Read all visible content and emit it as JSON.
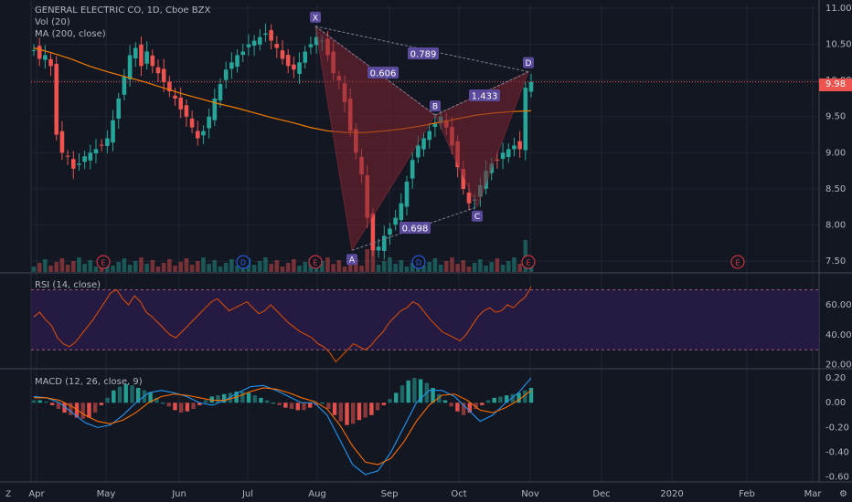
{
  "legend": {
    "symbol": "GENERAL ELECTRIC CO, 1D, Cboe BZX",
    "volume": "Vol (20)",
    "ma": "MA (200, close)",
    "rsi": "RSI (14, close)",
    "macd": "MACD (12, 26, close, 9)"
  },
  "last_price": "9.98",
  "colors": {
    "up": "#26a69a",
    "down": "#ef5350",
    "ma": "#f57c00",
    "rsi": "#e65100",
    "rsi_band": "#2a1b4a",
    "macd": "#2196f3",
    "signal": "#ff6d00",
    "pattern": "#7d2430",
    "label_bg": "#5b4a9c"
  },
  "chart_data": [
    {
      "type": "candlestick",
      "title": "GENERAL ELECTRIC CO, 1D, Cboe BZX",
      "x_ticks": [
        "Apr",
        "May",
        "Jun",
        "Jul",
        "Aug",
        "Sep",
        "Oct",
        "Nov",
        "Dec",
        "2020",
        "Feb",
        "Mar"
      ],
      "y_ticks": [
        "11.00",
        "10.50",
        "10.00",
        "9.50",
        "9.00",
        "8.50",
        "8.00",
        "7.50"
      ],
      "ylim": [
        7.35,
        11.05
      ],
      "close": [
        10.42,
        10.3,
        10.35,
        10.2,
        9.25,
        9.0,
        8.95,
        8.78,
        8.85,
        8.95,
        9.0,
        9.05,
        9.1,
        9.2,
        9.45,
        9.75,
        10.05,
        10.35,
        10.45,
        10.2,
        10.4,
        10.2,
        10.1,
        9.98,
        9.85,
        9.75,
        9.6,
        9.5,
        9.35,
        9.2,
        9.3,
        9.5,
        9.75,
        9.95,
        10.15,
        10.25,
        10.35,
        10.4,
        10.5,
        10.55,
        10.6,
        10.65,
        10.55,
        10.45,
        10.3,
        10.2,
        10.15,
        10.25,
        10.4,
        10.5,
        10.6,
        10.55,
        10.35,
        10.1,
        10.0,
        9.7,
        9.3,
        9.0,
        8.7,
        8.1,
        7.65,
        7.7,
        7.85,
        7.95,
        8.1,
        8.3,
        8.6,
        8.9,
        9.1,
        9.2,
        9.3,
        9.4,
        9.5,
        9.35,
        9.1,
        8.8,
        8.5,
        8.3,
        8.35,
        8.55,
        8.75,
        8.85,
        8.9,
        9.0,
        9.05,
        9.1,
        9.05,
        9.9,
        9.98
      ],
      "ma200": [
        10.45,
        10.38,
        10.3,
        10.2,
        10.12,
        10.05,
        9.98,
        9.9,
        9.82,
        9.75,
        9.68,
        9.62,
        9.55,
        9.48,
        9.42,
        9.35,
        9.3,
        9.28,
        9.28,
        9.3,
        9.33,
        9.37,
        9.42,
        9.47,
        9.52,
        9.55,
        9.57,
        9.58
      ],
      "volume_note": "Vol (20)",
      "annotations": {
        "points": [
          {
            "label": "X",
            "date": "Aug 1",
            "price": 10.75
          },
          {
            "label": "A",
            "date": "Aug 15",
            "price": 7.65
          },
          {
            "label": "B",
            "date": "Sep 20",
            "price": 9.52
          },
          {
            "label": "C",
            "date": "Oct 7",
            "price": 8.25
          },
          {
            "label": "D",
            "date": "Oct 29",
            "price": 10.12
          }
        ],
        "ratios": [
          "0.606",
          "0.789",
          "1.433",
          "0.698"
        ],
        "events": [
          "E",
          "D",
          "E",
          "D",
          "E",
          "E"
        ]
      }
    },
    {
      "type": "line",
      "title": "RSI (14, close)",
      "y_ticks": [
        "60.00",
        "40.00",
        "20.00"
      ],
      "ylim": [
        18,
        80
      ],
      "bands": [
        30,
        70
      ],
      "values": [
        52,
        55,
        50,
        46,
        38,
        34,
        32,
        35,
        40,
        45,
        50,
        56,
        62,
        68,
        70,
        64,
        60,
        66,
        62,
        55,
        52,
        48,
        44,
        40,
        38,
        42,
        46,
        50,
        54,
        58,
        62,
        64,
        60,
        56,
        58,
        60,
        62,
        58,
        54,
        56,
        60,
        56,
        52,
        48,
        45,
        42,
        40,
        38,
        34,
        32,
        28,
        22,
        26,
        30,
        34,
        32,
        30,
        33,
        38,
        42,
        48,
        52,
        56,
        58,
        62,
        60,
        55,
        50,
        46,
        42,
        40,
        38,
        36,
        40,
        46,
        52,
        56,
        58,
        55,
        56,
        60,
        58,
        62,
        65,
        72
      ]
    },
    {
      "type": "bar",
      "title": "MACD (12, 26, close, 9)",
      "y_ticks": [
        "0.20",
        "0.00",
        "-0.20",
        "-0.40",
        "-0.60"
      ],
      "ylim": [
        -0.64,
        0.26
      ],
      "histogram": [
        0.02,
        0.02,
        0.01,
        -0.02,
        -0.05,
        -0.08,
        -0.1,
        -0.12,
        -0.13,
        -0.12,
        -0.08,
        -0.02,
        0.04,
        0.1,
        0.13,
        0.15,
        0.14,
        0.12,
        0.1,
        0.08,
        0.04,
        0.0,
        -0.03,
        -0.06,
        -0.08,
        -0.07,
        -0.05,
        -0.02,
        0.02,
        0.05,
        0.06,
        0.07,
        0.08,
        0.09,
        0.09,
        0.08,
        0.06,
        0.04,
        0.02,
        0.0,
        -0.02,
        -0.04,
        -0.05,
        -0.06,
        -0.06,
        -0.04,
        -0.02,
        0.0,
        -0.05,
        -0.1,
        -0.15,
        -0.18,
        -0.17,
        -0.14,
        -0.12,
        -0.1,
        -0.06,
        -0.02,
        0.03,
        0.08,
        0.14,
        0.18,
        0.2,
        0.19,
        0.16,
        0.12,
        0.07,
        0.02,
        -0.03,
        -0.07,
        -0.1,
        -0.08,
        -0.05,
        -0.02,
        0.02,
        0.04,
        0.05,
        0.06,
        0.07,
        0.08,
        0.1,
        0.12
      ],
      "macd_line": [
        0.05,
        0.04,
        0.0,
        -0.08,
        -0.16,
        -0.2,
        -0.18,
        -0.1,
        0.0,
        0.08,
        0.1,
        0.08,
        0.05,
        0.0,
        -0.02,
        0.02,
        0.08,
        0.13,
        0.14,
        0.1,
        0.05,
        0.0,
        0.0,
        -0.1,
        -0.3,
        -0.5,
        -0.58,
        -0.55,
        -0.4,
        -0.2,
        0.0,
        0.1,
        0.1,
        0.05,
        -0.05,
        -0.15,
        -0.1,
        0.0,
        0.08,
        0.2
      ],
      "signal_line": [
        0.04,
        0.04,
        0.02,
        -0.03,
        -0.1,
        -0.15,
        -0.17,
        -0.14,
        -0.08,
        0.0,
        0.05,
        0.07,
        0.06,
        0.04,
        0.02,
        0.02,
        0.05,
        0.09,
        0.12,
        0.11,
        0.08,
        0.04,
        0.01,
        -0.05,
        -0.18,
        -0.35,
        -0.48,
        -0.5,
        -0.45,
        -0.32,
        -0.15,
        -0.02,
        0.06,
        0.07,
        0.02,
        -0.06,
        -0.08,
        -0.04,
        0.02,
        0.1
      ]
    }
  ]
}
